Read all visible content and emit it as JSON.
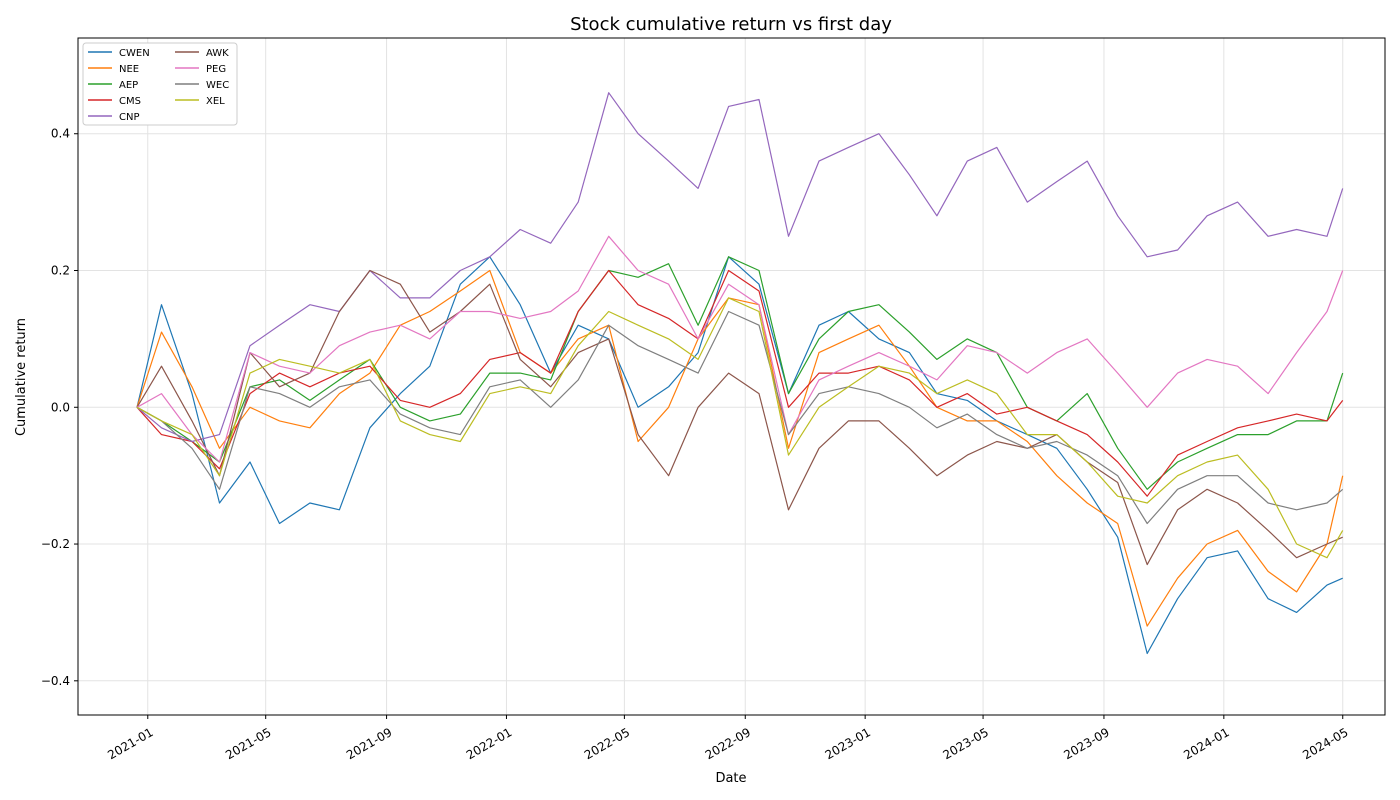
{
  "chart_data": {
    "type": "line",
    "title": "Stock cumulative return vs first day",
    "xlabel": "Date",
    "ylabel": "Cumulative return",
    "grid": true,
    "legend_position": "top-left",
    "x_tick_labels": [
      "2021-01",
      "2021-05",
      "2021-09",
      "2022-01",
      "2022-05",
      "2022-09",
      "2023-01",
      "2023-05",
      "2023-09",
      "2024-01",
      "2024-05"
    ],
    "y_ticks": [
      -0.4,
      -0.2,
      0.0,
      0.2,
      0.4
    ],
    "y_tick_labels": [
      "−0.4",
      "−0.2",
      "0.0",
      "0.2",
      "0.4"
    ],
    "xlim": [
      "2020-10-22",
      "2024-06-13"
    ],
    "ylim": [
      -0.45,
      0.54
    ],
    "dates": [
      "2020-12-21",
      "2021-01-15",
      "2021-02-15",
      "2021-03-15",
      "2021-04-15",
      "2021-05-15",
      "2021-06-15",
      "2021-07-15",
      "2021-08-15",
      "2021-09-15",
      "2021-10-15",
      "2021-11-15",
      "2021-12-15",
      "2022-01-15",
      "2022-02-15",
      "2022-03-15",
      "2022-04-15",
      "2022-05-15",
      "2022-06-15",
      "2022-07-15",
      "2022-08-15",
      "2022-09-15",
      "2022-10-15",
      "2022-11-15",
      "2022-12-15",
      "2023-01-15",
      "2023-02-15",
      "2023-03-15",
      "2023-04-15",
      "2023-05-15",
      "2023-06-15",
      "2023-07-15",
      "2023-08-15",
      "2023-09-15",
      "2023-10-15",
      "2023-11-15",
      "2023-12-15",
      "2024-01-15",
      "2024-02-15",
      "2024-03-15",
      "2024-04-15",
      "2024-05-01"
    ],
    "series": [
      {
        "name": "CWEN",
        "color": "#1f77b4",
        "values": [
          0.0,
          0.15,
          0.02,
          -0.14,
          -0.08,
          -0.17,
          -0.14,
          -0.15,
          -0.03,
          0.02,
          0.06,
          0.18,
          0.22,
          0.15,
          0.05,
          0.12,
          0.1,
          0.0,
          0.03,
          0.08,
          0.22,
          0.18,
          0.02,
          0.12,
          0.14,
          0.1,
          0.08,
          0.02,
          0.01,
          -0.02,
          -0.04,
          -0.06,
          -0.12,
          -0.19,
          -0.36,
          -0.28,
          -0.22,
          -0.21,
          -0.28,
          -0.3,
          -0.26,
          -0.25
        ]
      },
      {
        "name": "NEE",
        "color": "#ff7f0e",
        "values": [
          0.0,
          0.11,
          0.03,
          -0.06,
          0.0,
          -0.02,
          -0.03,
          0.02,
          0.05,
          0.12,
          0.14,
          0.17,
          0.2,
          0.08,
          0.05,
          0.1,
          0.12,
          -0.05,
          0.0,
          0.1,
          0.16,
          0.15,
          -0.06,
          0.08,
          0.1,
          0.12,
          0.06,
          0.0,
          -0.02,
          -0.02,
          -0.05,
          -0.1,
          -0.14,
          -0.17,
          -0.32,
          -0.25,
          -0.2,
          -0.18,
          -0.24,
          -0.27,
          -0.2,
          -0.1
        ]
      },
      {
        "name": "AEP",
        "color": "#2ca02c",
        "values": [
          0.0,
          -0.02,
          -0.05,
          -0.08,
          0.03,
          0.04,
          0.01,
          0.04,
          0.07,
          0.0,
          -0.02,
          -0.01,
          0.05,
          0.05,
          0.04,
          0.14,
          0.2,
          0.19,
          0.21,
          0.12,
          0.22,
          0.2,
          0.02,
          0.1,
          0.14,
          0.15,
          0.11,
          0.07,
          0.1,
          0.08,
          0.0,
          -0.02,
          0.02,
          -0.06,
          -0.12,
          -0.08,
          -0.06,
          -0.04,
          -0.04,
          -0.02,
          -0.02,
          0.05
        ]
      },
      {
        "name": "CMS",
        "color": "#d62728",
        "values": [
          0.0,
          -0.04,
          -0.05,
          -0.09,
          0.02,
          0.05,
          0.03,
          0.05,
          0.06,
          0.01,
          0.0,
          0.02,
          0.07,
          0.08,
          0.05,
          0.14,
          0.2,
          0.15,
          0.13,
          0.1,
          0.2,
          0.17,
          0.0,
          0.05,
          0.05,
          0.06,
          0.04,
          0.0,
          0.02,
          -0.01,
          0.0,
          -0.02,
          -0.04,
          -0.08,
          -0.13,
          -0.07,
          -0.05,
          -0.03,
          -0.02,
          -0.01,
          -0.02,
          0.01
        ]
      },
      {
        "name": "CNP",
        "color": "#9467bd",
        "values": [
          0.0,
          -0.03,
          -0.05,
          -0.04,
          0.09,
          0.12,
          0.15,
          0.14,
          0.2,
          0.16,
          0.16,
          0.2,
          0.22,
          0.26,
          0.24,
          0.3,
          0.46,
          0.4,
          0.36,
          0.32,
          0.44,
          0.45,
          0.25,
          0.36,
          0.38,
          0.4,
          0.34,
          0.28,
          0.36,
          0.38,
          0.3,
          0.33,
          0.36,
          0.28,
          0.22,
          0.23,
          0.28,
          0.3,
          0.25,
          0.26,
          0.25,
          0.32
        ]
      },
      {
        "name": "AWK",
        "color": "#8c564b",
        "values": [
          0.0,
          0.06,
          -0.02,
          -0.1,
          0.08,
          0.03,
          0.05,
          0.14,
          0.2,
          0.18,
          0.11,
          0.14,
          0.18,
          0.07,
          0.03,
          0.08,
          0.1,
          -0.04,
          -0.1,
          0.0,
          0.05,
          0.02,
          -0.15,
          -0.06,
          -0.02,
          -0.02,
          -0.06,
          -0.1,
          -0.07,
          -0.05,
          -0.06,
          -0.04,
          -0.08,
          -0.11,
          -0.23,
          -0.15,
          -0.12,
          -0.14,
          -0.18,
          -0.22,
          -0.2,
          -0.19
        ]
      },
      {
        "name": "PEG",
        "color": "#e377c2",
        "values": [
          0.0,
          0.02,
          -0.04,
          -0.08,
          0.08,
          0.06,
          0.05,
          0.09,
          0.11,
          0.12,
          0.1,
          0.14,
          0.14,
          0.13,
          0.14,
          0.17,
          0.25,
          0.2,
          0.18,
          0.1,
          0.18,
          0.15,
          -0.04,
          0.04,
          0.06,
          0.08,
          0.06,
          0.04,
          0.09,
          0.08,
          0.05,
          0.08,
          0.1,
          0.05,
          0.0,
          0.05,
          0.07,
          0.06,
          0.02,
          0.08,
          0.14,
          0.2
        ]
      },
      {
        "name": "WEC",
        "color": "#7f7f7f",
        "values": [
          0.0,
          -0.02,
          -0.06,
          -0.12,
          0.03,
          0.02,
          0.0,
          0.03,
          0.04,
          -0.01,
          -0.03,
          -0.04,
          0.03,
          0.04,
          0.0,
          0.04,
          0.12,
          0.09,
          0.07,
          0.05,
          0.14,
          0.12,
          -0.04,
          0.02,
          0.03,
          0.02,
          0.0,
          -0.03,
          -0.01,
          -0.04,
          -0.06,
          -0.05,
          -0.07,
          -0.1,
          -0.17,
          -0.12,
          -0.1,
          -0.1,
          -0.14,
          -0.15,
          -0.14,
          -0.12
        ]
      },
      {
        "name": "XEL",
        "color": "#bcbd22",
        "values": [
          0.0,
          -0.02,
          -0.04,
          -0.1,
          0.05,
          0.07,
          0.06,
          0.05,
          0.07,
          -0.02,
          -0.04,
          -0.05,
          0.02,
          0.03,
          0.02,
          0.09,
          0.14,
          0.12,
          0.1,
          0.07,
          0.16,
          0.14,
          -0.07,
          0.0,
          0.03,
          0.06,
          0.05,
          0.02,
          0.04,
          0.02,
          -0.04,
          -0.04,
          -0.08,
          -0.13,
          -0.14,
          -0.1,
          -0.08,
          -0.07,
          -0.12,
          -0.2,
          -0.22,
          -0.18
        ]
      }
    ]
  }
}
